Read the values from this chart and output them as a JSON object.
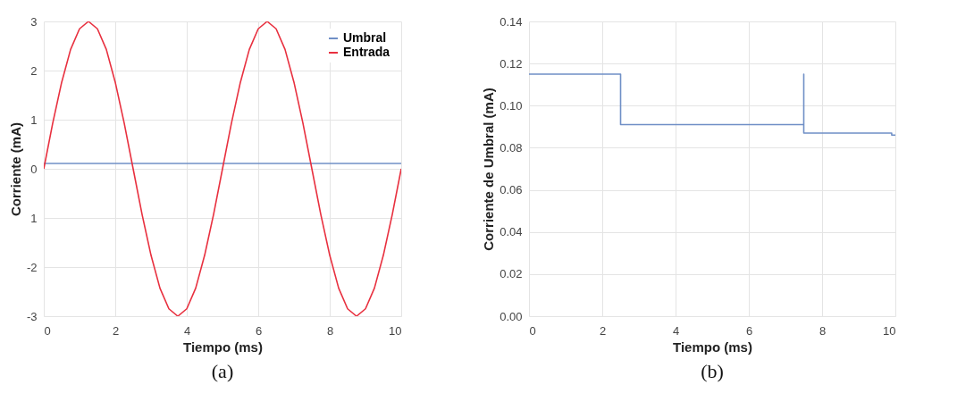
{
  "chart_data": [
    {
      "type": "line",
      "xlabel": "Tiempo (ms)",
      "ylabel": "Corriente (mA)",
      "xlim": [
        0,
        10
      ],
      "ylim": [
        -3,
        3
      ],
      "xticks": [
        0,
        2,
        4,
        6,
        8,
        10
      ],
      "yticks": [
        -3,
        -2,
        {
          "value": -1,
          "label": "1"
        },
        0,
        1,
        2,
        3
      ],
      "grid": true,
      "legend": "top right",
      "annotations": [
        "(a)"
      ],
      "series": [
        {
          "name": "Umbral",
          "color": "#6f8fc6",
          "x": [
            0,
            10
          ],
          "values": [
            0.11,
            0.11
          ]
        },
        {
          "name": "Entrada",
          "color": "#e8303f",
          "x": [
            0,
            0.25,
            0.5,
            0.75,
            1,
            1.25,
            1.5,
            1.75,
            2,
            2.25,
            2.5,
            2.75,
            3,
            3.25,
            3.5,
            3.75,
            4,
            4.25,
            4.5,
            4.75,
            5,
            5.25,
            5.5,
            5.75,
            6,
            6.25,
            6.5,
            6.75,
            7,
            7.25,
            7.5,
            7.75,
            8,
            8.25,
            8.5,
            8.75,
            9,
            9.25,
            9.5,
            9.75,
            10
          ],
          "values": [
            0,
            0.93,
            1.76,
            2.43,
            2.85,
            3,
            2.85,
            2.43,
            1.76,
            0.93,
            0,
            -0.93,
            -1.76,
            -2.43,
            -2.85,
            -3,
            -2.85,
            -2.43,
            -1.76,
            -0.93,
            0,
            0.93,
            1.76,
            2.43,
            2.85,
            3,
            2.85,
            2.43,
            1.76,
            0.93,
            0,
            -0.93,
            -1.76,
            -2.43,
            -2.85,
            -3,
            -2.85,
            -2.43,
            -1.76,
            -0.93,
            0
          ]
        }
      ]
    },
    {
      "type": "line",
      "xlabel": "Tiempo (ms)",
      "ylabel": "Corriente de Umbral (mA)",
      "xlim": [
        0,
        10
      ],
      "ylim": [
        0,
        0.14
      ],
      "xticks": [
        0,
        2,
        4,
        6,
        8,
        10
      ],
      "yticks": [
        {
          "value": 0,
          "label": "0.00"
        },
        {
          "value": 0.02,
          "label": "0.02"
        },
        {
          "value": 0.04,
          "label": "0.04"
        },
        {
          "value": 0.06,
          "label": "0.06"
        },
        {
          "value": 0.08,
          "label": "0.08"
        },
        {
          "value": 0.1,
          "label": "0.10"
        },
        {
          "value": 0.12,
          "label": "0.12"
        },
        {
          "value": 0.14,
          "label": "0.14"
        }
      ],
      "grid": true,
      "annotations": [
        "(b)"
      ],
      "series": [
        {
          "color": "#6f8fc6",
          "x": [
            0,
            2.5,
            2.5,
            7.5,
            7.5,
            7.5,
            9.9,
            9.9,
            10
          ],
          "values": [
            0.115,
            0.115,
            0.091,
            0.091,
            0.115,
            0.087,
            0.087,
            0.086,
            0.086
          ]
        }
      ]
    }
  ]
}
